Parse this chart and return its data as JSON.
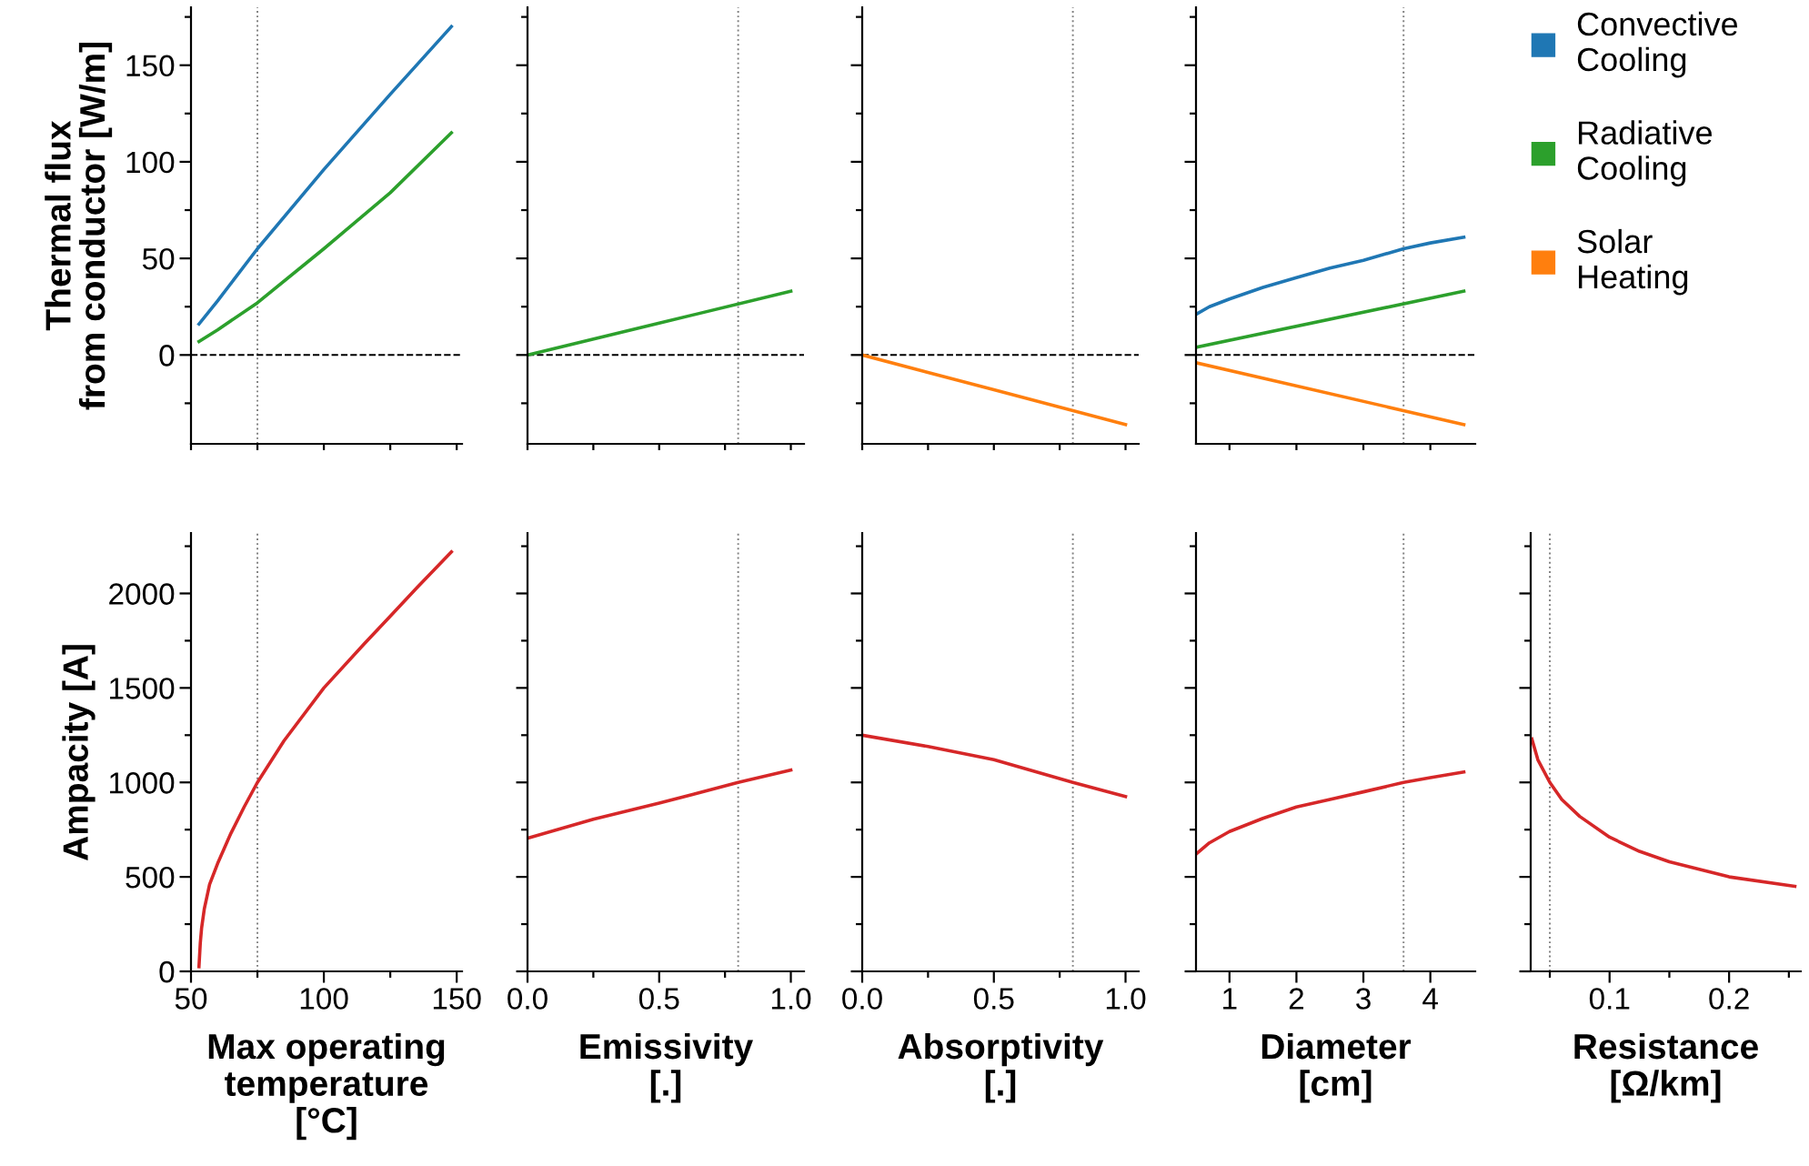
{
  "chart_data": [
    {
      "type": "line",
      "ylabel": "Thermal flux\nfrom conductor [W/m]",
      "xlim": [
        50,
        152
      ],
      "ylim": [
        -46,
        180
      ],
      "tick_labels": "y",
      "xticks": [
        {
          "value": 50,
          "label": null
        },
        {
          "value": 75,
          "label": null
        },
        {
          "value": 100,
          "label": null
        },
        {
          "value": 125,
          "label": null
        },
        {
          "value": 150,
          "label": null
        }
      ],
      "yticks": [
        {
          "value": -25,
          "label": null
        },
        0,
        {
          "value": 25,
          "label": null
        },
        50,
        {
          "value": 75,
          "label": null
        },
        100,
        {
          "value": 125,
          "label": null
        },
        150,
        {
          "value": 175,
          "label": null
        }
      ],
      "series": [
        {
          "color": "#1f77b4",
          "x": [
            53,
            60,
            75,
            100,
            125,
            148
          ],
          "values": [
            16,
            28,
            55,
            96,
            135,
            170
          ]
        },
        {
          "color": "#2ca02c",
          "x": [
            53,
            60,
            75,
            100,
            125,
            148
          ],
          "values": [
            7,
            13,
            27,
            55,
            84,
            115
          ]
        }
      ],
      "ref_lines": [
        {
          "axis": "x",
          "value": 75,
          "color": "#808080",
          "line_style": "dotted"
        },
        {
          "axis": "y",
          "value": 0,
          "color": "#000000",
          "line_style": "dashed"
        }
      ]
    },
    {
      "type": "line",
      "xlim": [
        0,
        1.05
      ],
      "ylim": [
        -46,
        180
      ],
      "tick_labels": false,
      "xticks": [
        {
          "value": 0,
          "label": null
        },
        {
          "value": 0.25,
          "label": null
        },
        {
          "value": 0.5,
          "label": null
        },
        {
          "value": 0.75,
          "label": null
        },
        {
          "value": 1,
          "label": null
        }
      ],
      "yticks": [
        {
          "value": -25,
          "label": null
        },
        0,
        {
          "value": 25,
          "label": null
        },
        50,
        {
          "value": 75,
          "label": null
        },
        100,
        {
          "value": 125,
          "label": null
        },
        150,
        {
          "value": 175,
          "label": null
        }
      ],
      "series": [
        {
          "color": "#2ca02c",
          "x": [
            0,
            0.5,
            1
          ],
          "values": [
            0,
            16.5,
            33
          ]
        }
      ],
      "ref_lines": [
        {
          "axis": "x",
          "value": 0.8,
          "color": "#808080",
          "line_style": "dotted"
        },
        {
          "axis": "y",
          "value": 0,
          "color": "#000000",
          "line_style": "dashed"
        }
      ]
    },
    {
      "type": "line",
      "xlim": [
        0,
        1.05
      ],
      "ylim": [
        -46,
        180
      ],
      "tick_labels": false,
      "xticks": [
        {
          "value": 0,
          "label": null
        },
        {
          "value": 0.25,
          "label": null
        },
        {
          "value": 0.5,
          "label": null
        },
        {
          "value": 0.75,
          "label": null
        },
        {
          "value": 1,
          "label": null
        }
      ],
      "yticks": [
        {
          "value": -25,
          "label": null
        },
        0,
        {
          "value": 25,
          "label": null
        },
        50,
        {
          "value": 75,
          "label": null
        },
        100,
        {
          "value": 125,
          "label": null
        },
        150,
        {
          "value": 175,
          "label": null
        }
      ],
      "series": [
        {
          "color": "#ff7f0e",
          "x": [
            0,
            0.5,
            1
          ],
          "values": [
            0,
            -18,
            -36
          ]
        }
      ],
      "ref_lines": [
        {
          "axis": "x",
          "value": 0.8,
          "color": "#808080",
          "line_style": "dotted"
        },
        {
          "axis": "y",
          "value": 0,
          "color": "#000000",
          "line_style": "dashed"
        }
      ]
    },
    {
      "type": "line",
      "xlim": [
        0.5,
        4.67
      ],
      "ylim": [
        -46,
        180
      ],
      "tick_labels": false,
      "legend": "right",
      "xticks": [
        {
          "value": 1,
          "label": null
        },
        {
          "value": 2,
          "label": null
        },
        {
          "value": 3,
          "label": null
        },
        {
          "value": 4,
          "label": null
        }
      ],
      "yticks": [
        {
          "value": -25,
          "label": null
        },
        0,
        {
          "value": 25,
          "label": null
        },
        50,
        {
          "value": 75,
          "label": null
        },
        100,
        {
          "value": 125,
          "label": null
        },
        150,
        {
          "value": 175,
          "label": null
        }
      ],
      "series": [
        {
          "name": "Convective\nCooling",
          "color": "#1f77b4",
          "x": [
            0.5,
            0.7,
            1,
            1.5,
            2,
            2.5,
            3,
            3.6,
            4,
            4.5
          ],
          "values": [
            21,
            25,
            29,
            35,
            40,
            45,
            49,
            55,
            58,
            61
          ]
        },
        {
          "name": "Radiative\nCooling",
          "color": "#2ca02c",
          "x": [
            0.5,
            4.5
          ],
          "values": [
            4,
            33
          ]
        },
        {
          "name": "Solar\nHeating",
          "color": "#ff7f0e",
          "x": [
            0.5,
            4.5
          ],
          "values": [
            -4,
            -36
          ]
        }
      ],
      "ref_lines": [
        {
          "axis": "x",
          "value": 3.6,
          "color": "#808080",
          "line_style": "dotted"
        },
        {
          "axis": "y",
          "value": 0,
          "color": "#000000",
          "line_style": "dashed"
        }
      ]
    },
    {
      "type": "line",
      "xlabel": "Max operating\ntemperature\n[°C]",
      "ylabel": "Ampacity [A]",
      "xlim": [
        50,
        152
      ],
      "ylim": [
        0,
        2320
      ],
      "xticks": [
        50,
        {
          "value": 75,
          "label": null
        },
        100,
        {
          "value": 125,
          "label": null
        },
        150
      ],
      "yticks": [
        0,
        {
          "value": 250,
          "label": null
        },
        500,
        {
          "value": 750,
          "label": null
        },
        1000,
        {
          "value": 1250,
          "label": null
        },
        1500,
        {
          "value": 1750,
          "label": null
        },
        2000,
        {
          "value": 2250,
          "label": null
        }
      ],
      "series": [
        {
          "color": "#d62728",
          "x": [
            53,
            53.5,
            54,
            55,
            57,
            60,
            65,
            70,
            75,
            85,
            100,
            115,
            125,
            135,
            148
          ],
          "values": [
            25,
            150,
            230,
            330,
            460,
            570,
            730,
            870,
            1000,
            1220,
            1500,
            1730,
            1880,
            2030,
            2220
          ]
        }
      ],
      "ref_lines": [
        {
          "axis": "x",
          "value": 75,
          "color": "#808080",
          "line_style": "dotted"
        }
      ]
    },
    {
      "type": "line",
      "xlabel": "Emissivity\n[.]",
      "xlim": [
        0,
        1.05
      ],
      "ylim": [
        0,
        2320
      ],
      "tick_labels": "x",
      "xticks": [
        {
          "value": 0,
          "label": "0.0"
        },
        {
          "value": 0.25,
          "label": null
        },
        {
          "value": 0.5,
          "label": "0.5"
        },
        {
          "value": 0.75,
          "label": null
        },
        {
          "value": 1,
          "label": "1.0"
        }
      ],
      "yticks": [
        0,
        {
          "value": 250,
          "label": null
        },
        500,
        {
          "value": 750,
          "label": null
        },
        1000,
        {
          "value": 1250,
          "label": null
        },
        1500,
        {
          "value": 1750,
          "label": null
        },
        2000,
        {
          "value": 2250,
          "label": null
        }
      ],
      "series": [
        {
          "color": "#d62728",
          "x": [
            0,
            0.25,
            0.5,
            0.8,
            1
          ],
          "values": [
            705,
            805,
            890,
            1000,
            1065
          ]
        }
      ],
      "ref_lines": [
        {
          "axis": "x",
          "value": 0.8,
          "color": "#808080",
          "line_style": "dotted"
        }
      ]
    },
    {
      "type": "line",
      "xlabel": "Absorptivity\n[.]",
      "xlim": [
        0,
        1.05
      ],
      "ylim": [
        0,
        2320
      ],
      "tick_labels": "x",
      "xticks": [
        {
          "value": 0,
          "label": "0.0"
        },
        {
          "value": 0.25,
          "label": null
        },
        {
          "value": 0.5,
          "label": "0.5"
        },
        {
          "value": 0.75,
          "label": null
        },
        {
          "value": 1,
          "label": "1.0"
        }
      ],
      "yticks": [
        0,
        {
          "value": 250,
          "label": null
        },
        500,
        {
          "value": 750,
          "label": null
        },
        1000,
        {
          "value": 1250,
          "label": null
        },
        1500,
        {
          "value": 1750,
          "label": null
        },
        2000,
        {
          "value": 2250,
          "label": null
        }
      ],
      "series": [
        {
          "color": "#d62728",
          "x": [
            0,
            0.25,
            0.5,
            0.8,
            1
          ],
          "values": [
            1250,
            1190,
            1120,
            1000,
            925
          ]
        }
      ],
      "ref_lines": [
        {
          "axis": "x",
          "value": 0.8,
          "color": "#808080",
          "line_style": "dotted"
        }
      ]
    },
    {
      "type": "line",
      "xlabel": "Diameter\n[cm]",
      "xlim": [
        0.5,
        4.67
      ],
      "ylim": [
        0,
        2320
      ],
      "tick_labels": "x",
      "xticks": [
        1,
        2,
        3,
        4
      ],
      "yticks": [
        0,
        {
          "value": 250,
          "label": null
        },
        500,
        {
          "value": 750,
          "label": null
        },
        1000,
        {
          "value": 1250,
          "label": null
        },
        1500,
        {
          "value": 1750,
          "label": null
        },
        2000,
        {
          "value": 2250,
          "label": null
        }
      ],
      "series": [
        {
          "color": "#d62728",
          "x": [
            0.5,
            0.7,
            1,
            1.5,
            2,
            2.5,
            3,
            3.6,
            4,
            4.5
          ],
          "values": [
            620,
            680,
            740,
            810,
            870,
            910,
            950,
            1000,
            1025,
            1055
          ]
        }
      ],
      "ref_lines": [
        {
          "axis": "x",
          "value": 3.6,
          "color": "#808080",
          "line_style": "dotted"
        }
      ]
    },
    {
      "type": "line",
      "xlabel": "Resistance\n[Ω/km]",
      "xlim": [
        0.034,
        0.26
      ],
      "ylim": [
        0,
        2320
      ],
      "tick_labels": "x",
      "xticks": [
        {
          "value": 0.05,
          "label": null
        },
        0.1,
        {
          "value": 0.15,
          "label": null
        },
        0.2,
        {
          "value": 0.25,
          "label": null
        }
      ],
      "yticks": [
        0,
        {
          "value": 250,
          "label": null
        },
        500,
        {
          "value": 750,
          "label": null
        },
        1000,
        {
          "value": 1250,
          "label": null
        },
        1500,
        {
          "value": 1750,
          "label": null
        },
        2000,
        {
          "value": 2250,
          "label": null
        }
      ],
      "series": [
        {
          "color": "#d62728",
          "x": [
            0.035,
            0.04,
            0.05,
            0.06,
            0.075,
            0.1,
            0.125,
            0.15,
            0.2,
            0.255
          ],
          "values": [
            1230,
            1120,
            1000,
            910,
            820,
            710,
            635,
            580,
            500,
            450
          ]
        }
      ],
      "ref_lines": [
        {
          "axis": "x",
          "value": 0.05,
          "color": "#808080",
          "line_style": "dotted"
        }
      ]
    }
  ]
}
